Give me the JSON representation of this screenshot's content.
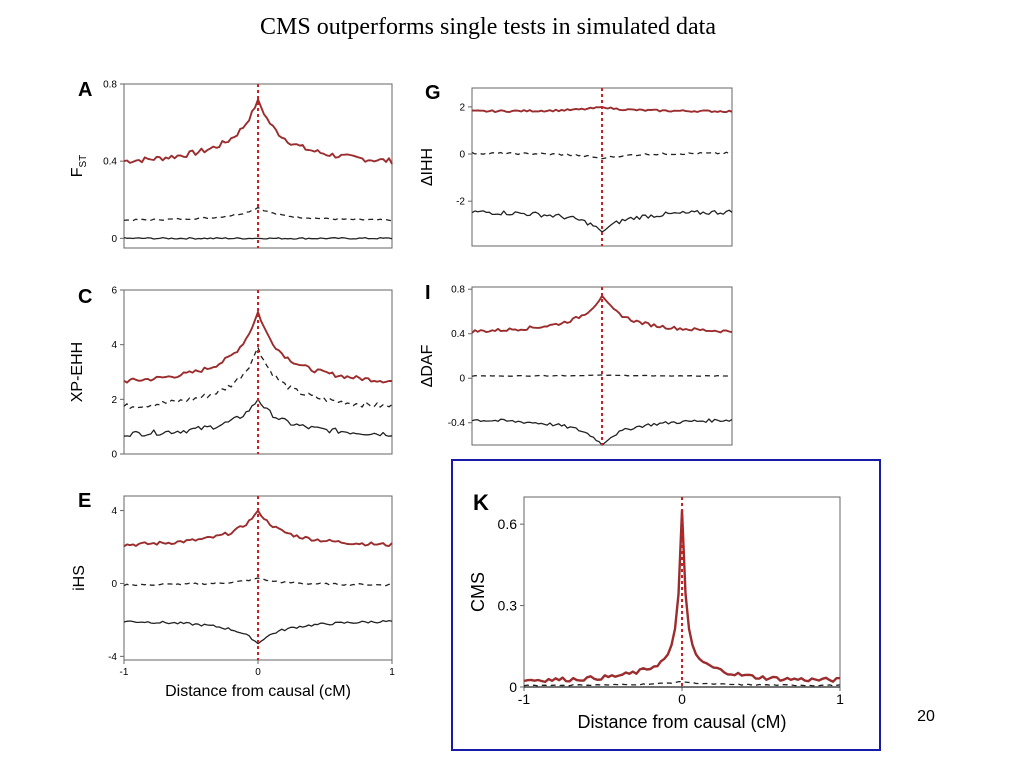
{
  "slide": {
    "title": "CMS outperforms single tests in simulated data",
    "page_number": "20"
  },
  "colors": {
    "candidate": "#9b2d2e",
    "neutral": "#222222",
    "causal_marker": "#cc1f1f",
    "highlight_box": "#1a1aa8"
  },
  "chart_data": [
    {
      "panel": "A",
      "type": "line",
      "ylabel": "F",
      "ylabel_sub": "ST",
      "xlim": [
        -1,
        1
      ],
      "ylim": [
        -0.05,
        0.8
      ],
      "yticks": [
        {
          "v": 0,
          "label": "0"
        },
        {
          "v": 0.4,
          "label": "0.4"
        },
        {
          "v": 0.8,
          "label": "0.8"
        }
      ],
      "xticks": [],
      "series": [
        {
          "style": "candidate",
          "base": 0.38,
          "peak": 0.72,
          "noise": 0.015
        },
        {
          "style": "neutral-dashed",
          "base": 0.09,
          "peak": 0.16,
          "noise": 0.004
        },
        {
          "style": "neutral-solid",
          "base": 0.0,
          "peak": 0.0,
          "noise": 0.004
        }
      ]
    },
    {
      "panel": "C",
      "type": "line",
      "ylabel": "XP-EHH",
      "xlim": [
        -1,
        1
      ],
      "ylim": [
        0,
        6
      ],
      "yticks": [
        {
          "v": 0,
          "label": "0"
        },
        {
          "v": 2,
          "label": "2"
        },
        {
          "v": 4,
          "label": "4"
        },
        {
          "v": 6,
          "label": "6"
        }
      ],
      "xticks": [],
      "series": [
        {
          "style": "candidate",
          "base": 2.5,
          "peak": 5.2,
          "noise": 0.08
        },
        {
          "style": "neutral-dashed",
          "base": 1.6,
          "peak": 3.9,
          "noise": 0.1
        },
        {
          "style": "neutral-solid",
          "base": 0.65,
          "peak": 2.0,
          "noise": 0.1
        }
      ]
    },
    {
      "panel": "E",
      "type": "line",
      "ylabel": "iHS",
      "xlim": [
        -1,
        1
      ],
      "ylim": [
        -4.2,
        4.8
      ],
      "yticks": [
        {
          "v": -4,
          "label": "-4"
        },
        {
          "v": 0,
          "label": "0"
        },
        {
          "v": 4,
          "label": "4"
        }
      ],
      "xticks": [
        {
          "v": -1,
          "label": "-1"
        },
        {
          "v": 0,
          "label": "0"
        },
        {
          "v": 1,
          "label": "1"
        }
      ],
      "xlabel": "Distance from causal (cM)",
      "series": [
        {
          "style": "candidate",
          "base": 2.0,
          "peak": 4.0,
          "noise": 0.1
        },
        {
          "style": "neutral-dashed",
          "base": -0.1,
          "peak": 0.3,
          "noise": 0.05
        },
        {
          "style": "neutral-solid",
          "base": -2.0,
          "peak": -3.3,
          "noise": 0.07
        }
      ]
    },
    {
      "panel": "G",
      "type": "line",
      "ylabel": "ΔIHH",
      "xlim": [
        -1,
        1
      ],
      "ylim": [
        -3.9,
        2.8
      ],
      "yticks": [
        {
          "v": -2,
          "label": "-2"
        },
        {
          "v": 0,
          "label": "0"
        },
        {
          "v": 2,
          "label": "2"
        }
      ],
      "xticks": [],
      "series": [
        {
          "style": "candidate",
          "base": 1.8,
          "peak": 2.0,
          "noise": 0.04
        },
        {
          "style": "neutral-dashed",
          "base": 0.05,
          "peak": -0.2,
          "noise": 0.04
        },
        {
          "style": "neutral-solid",
          "base": -2.4,
          "peak": -3.3,
          "noise": 0.1
        }
      ]
    },
    {
      "panel": "I",
      "type": "line",
      "ylabel": "ΔDAF",
      "xlim": [
        -1,
        1
      ],
      "ylim": [
        -0.6,
        0.82
      ],
      "yticks": [
        {
          "v": -0.4,
          "label": "-0.4"
        },
        {
          "v": 0,
          "label": "0"
        },
        {
          "v": 0.4,
          "label": "0.4"
        },
        {
          "v": 0.8,
          "label": "0.8"
        }
      ],
      "xticks": [],
      "series": [
        {
          "style": "candidate",
          "base": 0.4,
          "peak": 0.74,
          "noise": 0.015
        },
        {
          "style": "neutral-dashed",
          "base": 0.02,
          "peak": 0.03,
          "noise": 0.003
        },
        {
          "style": "neutral-solid",
          "base": -0.36,
          "peak": -0.6,
          "noise": 0.015
        }
      ]
    },
    {
      "panel": "K",
      "type": "line",
      "ylabel": "CMS",
      "xlim": [
        -1,
        1
      ],
      "ylim": [
        0,
        0.7
      ],
      "yticks": [
        {
          "v": 0,
          "label": "0"
        },
        {
          "v": 0.3,
          "label": "0.3"
        },
        {
          "v": 0.6,
          "label": "0.6"
        }
      ],
      "xticks": [
        {
          "v": -1,
          "label": "-1"
        },
        {
          "v": 0,
          "label": "0"
        },
        {
          "v": 1,
          "label": "1"
        }
      ],
      "xlabel": "Distance from causal (cM)",
      "series": [
        {
          "style": "candidate",
          "base": 0.025,
          "peak": 0.65,
          "noise": 0.008,
          "shape": "sharp"
        },
        {
          "style": "neutral-dashed",
          "base": 0.005,
          "peak": 0.02,
          "noise": 0.002
        },
        {
          "style": "neutral-solid",
          "base": 0.0,
          "peak": 0.0,
          "noise": 0.0
        }
      ]
    }
  ]
}
